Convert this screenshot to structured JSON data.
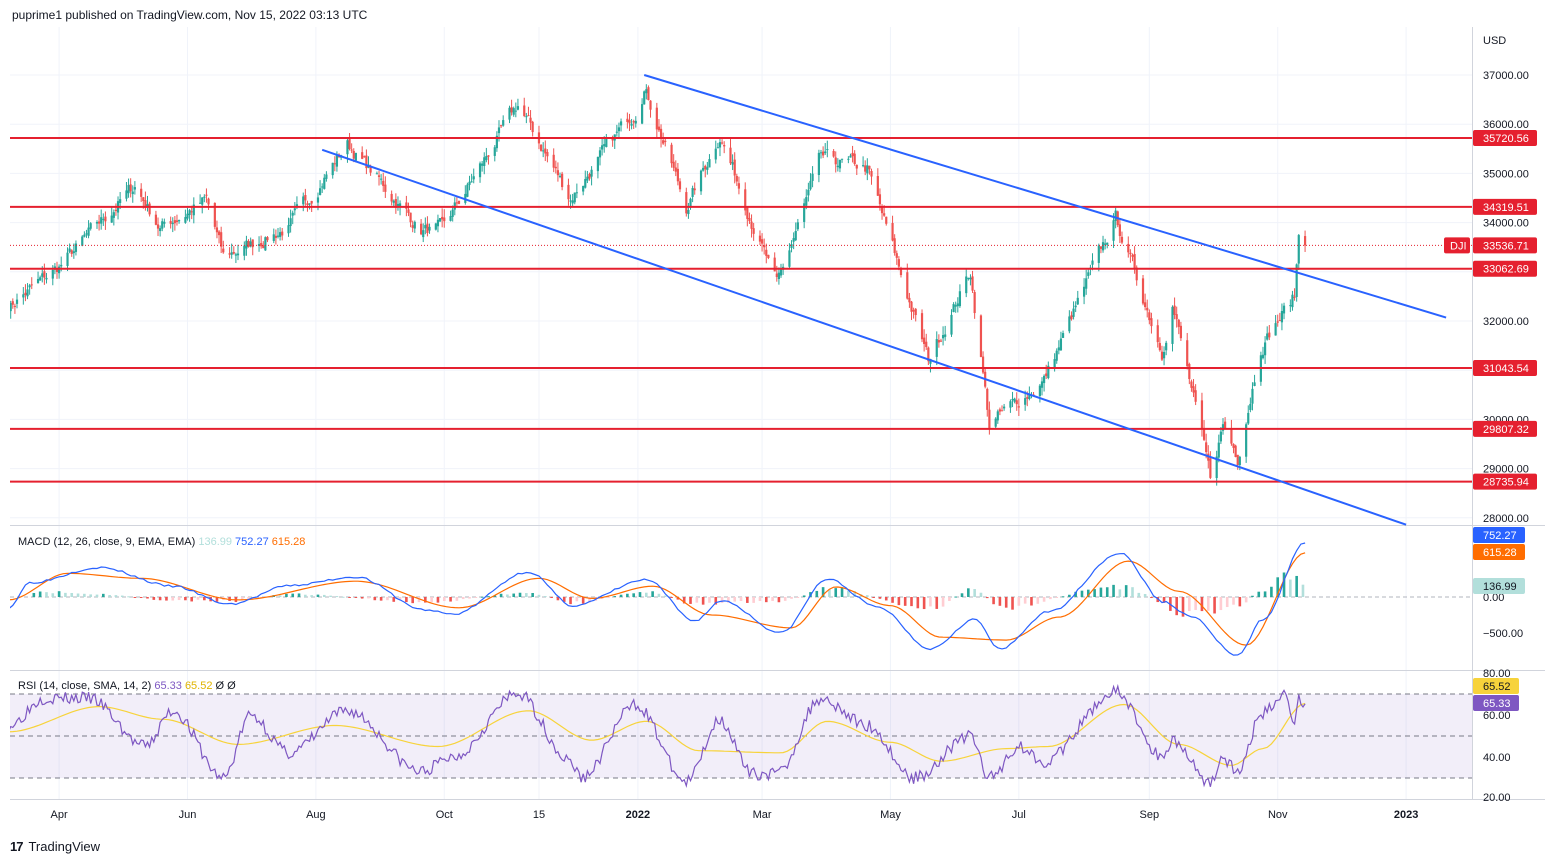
{
  "header": {
    "published": "puprime1 published on TradingView.com, Nov 15, 2022 03:13 UTC"
  },
  "footer": {
    "brand": "TradingView",
    "logo": "tv-logo-icon"
  },
  "colors": {
    "up": "#26a69a",
    "down": "#ef5350",
    "hline": "#e5202f",
    "channel": "#2962ff",
    "macd": "#2962ff",
    "signal": "#ff6d00",
    "rsi": "#7e57c2",
    "rsi_ma": "#f7d33b"
  },
  "chart_data": [
    {
      "type": "candlestick",
      "symbol": "DJI",
      "currency": "USD",
      "x_labels": [
        "Apr",
        "Jun",
        "Aug",
        "Oct",
        "15",
        "2022",
        "Mar",
        "May",
        "Jul",
        "Sep",
        "Nov",
        "2023"
      ],
      "y_ticks": [
        "37000.00",
        "36000.00",
        "35000.00",
        "34000.00",
        "33000.00",
        "32000.00",
        "31000.00",
        "30000.00",
        "29000.00",
        "28000.00"
      ],
      "ylim": [
        27800,
        38100
      ],
      "last_price": {
        "label": "DJI",
        "value": "33536.71"
      },
      "horizontal_levels": [
        {
          "value": 35720.56,
          "label": "35720.56"
        },
        {
          "value": 34319.51,
          "label": "34319.51"
        },
        {
          "value": 33062.69,
          "label": "33062.69"
        },
        {
          "value": 31043.54,
          "label": "31043.54"
        },
        {
          "value": 29807.32,
          "label": "29807.32"
        },
        {
          "value": 28735.94,
          "label": "28735.94"
        }
      ],
      "trend_channel": {
        "upper": {
          "from": {
            "x": "2022-01-04",
            "y": 37000
          },
          "to": {
            "x": "2023-01-20",
            "y": 32070
          }
        },
        "lower": {
          "from": {
            "x": "2021-08-04",
            "y": 35480
          },
          "to": {
            "x": "2023-01-01",
            "y": 27860
          }
        }
      },
      "series": [
        {
          "x": "2021-03-08",
          "y": 32300
        },
        {
          "x": "2021-04-01",
          "y": 33100
        },
        {
          "x": "2021-05-07",
          "y": 34750
        },
        {
          "x": "2021-05-19",
          "y": 33900
        },
        {
          "x": "2021-06-10",
          "y": 34450
        },
        {
          "x": "2021-06-18",
          "y": 33300
        },
        {
          "x": "2021-07-19",
          "y": 33900
        },
        {
          "x": "2021-08-16",
          "y": 35600
        },
        {
          "x": "2021-09-20",
          "y": 33850
        },
        {
          "x": "2021-09-30",
          "y": 33850
        },
        {
          "x": "2021-11-05",
          "y": 36400
        },
        {
          "x": "2021-11-30",
          "y": 34500
        },
        {
          "x": "2021-12-31",
          "y": 36300
        },
        {
          "x": "2022-01-04",
          "y": 36800
        },
        {
          "x": "2022-01-24",
          "y": 34300
        },
        {
          "x": "2022-02-09",
          "y": 35800
        },
        {
          "x": "2022-03-08",
          "y": 32700
        },
        {
          "x": "2022-03-29",
          "y": 35300
        },
        {
          "x": "2022-04-20",
          "y": 35100
        },
        {
          "x": "2022-05-19",
          "y": 31200
        },
        {
          "x": "2022-06-08",
          "y": 33000
        },
        {
          "x": "2022-06-17",
          "y": 29900
        },
        {
          "x": "2022-07-13",
          "y": 30800
        },
        {
          "x": "2022-08-16",
          "y": 34100
        },
        {
          "x": "2022-09-07",
          "y": 31400
        },
        {
          "x": "2022-09-12",
          "y": 32400
        },
        {
          "x": "2022-09-30",
          "y": 28800
        },
        {
          "x": "2022-10-06",
          "y": 29900
        },
        {
          "x": "2022-10-13",
          "y": 29250
        },
        {
          "x": "2022-10-24",
          "y": 31500
        },
        {
          "x": "2022-11-09",
          "y": 32500
        },
        {
          "x": "2022-11-11",
          "y": 33750
        },
        {
          "x": "2022-11-14",
          "y": 33536.71
        }
      ]
    },
    {
      "type": "line",
      "name": "MACD",
      "params": "(12, 26, close, 9, EMA, EMA)",
      "values_shown": {
        "histogram": "136.99",
        "macd": "752.27",
        "signal": "615.28"
      },
      "y_ticks": [
        "0.00",
        "−500.00"
      ],
      "ylim": [
        -950,
        950
      ],
      "series": [
        {
          "name": "MACD",
          "points": [
            {
              "x": "2021-03-08",
              "y": -150
            },
            {
              "x": "2021-03-18",
              "y": 200
            },
            {
              "x": "2021-04-20",
              "y": 410
            },
            {
              "x": "2021-05-25",
              "y": 150
            },
            {
              "x": "2021-06-21",
              "y": -100
            },
            {
              "x": "2021-07-20",
              "y": 160
            },
            {
              "x": "2021-08-20",
              "y": 280
            },
            {
              "x": "2021-09-22",
              "y": -180
            },
            {
              "x": "2021-10-05",
              "y": -240
            },
            {
              "x": "2021-11-10",
              "y": 350
            },
            {
              "x": "2021-12-01",
              "y": -120
            },
            {
              "x": "2022-01-05",
              "y": 240
            },
            {
              "x": "2022-01-28",
              "y": -330
            },
            {
              "x": "2022-02-10",
              "y": -50
            },
            {
              "x": "2022-03-10",
              "y": -500
            },
            {
              "x": "2022-04-01",
              "y": 250
            },
            {
              "x": "2022-04-25",
              "y": -140
            },
            {
              "x": "2022-05-20",
              "y": -720
            },
            {
              "x": "2022-06-10",
              "y": -310
            },
            {
              "x": "2022-06-22",
              "y": -730
            },
            {
              "x": "2022-07-15",
              "y": -210
            },
            {
              "x": "2022-08-18",
              "y": 610
            },
            {
              "x": "2022-09-08",
              "y": -70
            },
            {
              "x": "2022-09-20",
              "y": -260
            },
            {
              "x": "2022-10-13",
              "y": -820
            },
            {
              "x": "2022-10-25",
              "y": -310
            },
            {
              "x": "2022-11-14",
              "y": 752.27
            }
          ]
        },
        {
          "name": "Signal",
          "points": [
            {
              "x": "2021-03-08",
              "y": -40
            },
            {
              "x": "2021-04-05",
              "y": 330
            },
            {
              "x": "2021-05-10",
              "y": 260
            },
            {
              "x": "2021-06-25",
              "y": -40
            },
            {
              "x": "2021-08-20",
              "y": 220
            },
            {
              "x": "2021-10-08",
              "y": -150
            },
            {
              "x": "2021-11-15",
              "y": 260
            },
            {
              "x": "2021-12-10",
              "y": -20
            },
            {
              "x": "2022-01-08",
              "y": 150
            },
            {
              "x": "2022-02-05",
              "y": -250
            },
            {
              "x": "2022-03-15",
              "y": -430
            },
            {
              "x": "2022-04-05",
              "y": 140
            },
            {
              "x": "2022-05-01",
              "y": -120
            },
            {
              "x": "2022-05-25",
              "y": -560
            },
            {
              "x": "2022-06-25",
              "y": -600
            },
            {
              "x": "2022-07-20",
              "y": -280
            },
            {
              "x": "2022-08-22",
              "y": 500
            },
            {
              "x": "2022-09-15",
              "y": 80
            },
            {
              "x": "2022-10-17",
              "y": -670
            },
            {
              "x": "2022-11-14",
              "y": 615.28
            }
          ]
        },
        {
          "name": "Histogram",
          "points": [
            {
              "x": "2021-03-20",
              "y": 80
            },
            {
              "x": "2021-04-20",
              "y": 40
            },
            {
              "x": "2021-05-25",
              "y": -50
            },
            {
              "x": "2021-06-21",
              "y": -60
            },
            {
              "x": "2021-07-20",
              "y": 40
            },
            {
              "x": "2021-09-22",
              "y": -70
            },
            {
              "x": "2021-11-10",
              "y": 60
            },
            {
              "x": "2021-12-01",
              "y": -80
            },
            {
              "x": "2022-01-05",
              "y": 70
            },
            {
              "x": "2022-01-28",
              "y": -90
            },
            {
              "x": "2022-03-10",
              "y": -60
            },
            {
              "x": "2022-04-01",
              "y": 120
            },
            {
              "x": "2022-05-20",
              "y": -170
            },
            {
              "x": "2022-06-10",
              "y": 120
            },
            {
              "x": "2022-06-22",
              "y": -150
            },
            {
              "x": "2022-08-18",
              "y": 150
            },
            {
              "x": "2022-09-20",
              "y": -230
            },
            {
              "x": "2022-10-13",
              "y": -130
            },
            {
              "x": "2022-10-25",
              "y": 100
            },
            {
              "x": "2022-11-08",
              "y": 330
            },
            {
              "x": "2022-11-14",
              "y": 136.99
            }
          ]
        }
      ]
    },
    {
      "type": "line",
      "name": "RSI",
      "params": "(14, close, SMA, 14, 2)",
      "values_shown": {
        "rsi": "65.33",
        "ma": "65.52",
        "extra_1": "Ø",
        "extra_2": "Ø"
      },
      "y_ticks": [
        "80.00",
        "60.00",
        "40.00",
        "20.00"
      ],
      "ylim": [
        20,
        80
      ],
      "bands": {
        "upper": 70,
        "middle": 50,
        "lower": 30
      },
      "series": [
        {
          "name": "RSI",
          "points": [
            {
              "x": "2021-03-08",
              "y": 55
            },
            {
              "x": "2021-03-25",
              "y": 68
            },
            {
              "x": "2021-04-15",
              "y": 68
            },
            {
              "x": "2021-05-12",
              "y": 45
            },
            {
              "x": "2021-05-25",
              "y": 62
            },
            {
              "x": "2021-06-18",
              "y": 30
            },
            {
              "x": "2021-07-01",
              "y": 60
            },
            {
              "x": "2021-07-19",
              "y": 42
            },
            {
              "x": "2021-08-16",
              "y": 62
            },
            {
              "x": "2021-09-20",
              "y": 33
            },
            {
              "x": "2021-10-05",
              "y": 40
            },
            {
              "x": "2021-11-05",
              "y": 70
            },
            {
              "x": "2021-11-30",
              "y": 38
            },
            {
              "x": "2021-12-05",
              "y": 30
            },
            {
              "x": "2021-12-31",
              "y": 65
            },
            {
              "x": "2022-01-24",
              "y": 28
            },
            {
              "x": "2022-02-09",
              "y": 58
            },
            {
              "x": "2022-02-24",
              "y": 32
            },
            {
              "x": "2022-03-08",
              "y": 32
            },
            {
              "x": "2022-03-29",
              "y": 68
            },
            {
              "x": "2022-04-20",
              "y": 55
            },
            {
              "x": "2022-05-12",
              "y": 30
            },
            {
              "x": "2022-06-08",
              "y": 50
            },
            {
              "x": "2022-06-17",
              "y": 30
            },
            {
              "x": "2022-07-01",
              "y": 45
            },
            {
              "x": "2022-07-13",
              "y": 38
            },
            {
              "x": "2022-08-16",
              "y": 71
            },
            {
              "x": "2022-09-07",
              "y": 40
            },
            {
              "x": "2022-09-12",
              "y": 48
            },
            {
              "x": "2022-09-30",
              "y": 28
            },
            {
              "x": "2022-10-06",
              "y": 40
            },
            {
              "x": "2022-10-13",
              "y": 32
            },
            {
              "x": "2022-10-24",
              "y": 60
            },
            {
              "x": "2022-11-04",
              "y": 70
            },
            {
              "x": "2022-11-09",
              "y": 58
            },
            {
              "x": "2022-11-11",
              "y": 68
            },
            {
              "x": "2022-11-14",
              "y": 65.33
            }
          ]
        },
        {
          "name": "RSI MA",
          "points": [
            {
              "x": "2021-03-08",
              "y": 52
            },
            {
              "x": "2021-04-20",
              "y": 64
            },
            {
              "x": "2021-05-20",
              "y": 58
            },
            {
              "x": "2021-06-25",
              "y": 46
            },
            {
              "x": "2021-08-10",
              "y": 55
            },
            {
              "x": "2021-09-28",
              "y": 45
            },
            {
              "x": "2021-11-10",
              "y": 62
            },
            {
              "x": "2021-12-10",
              "y": 48
            },
            {
              "x": "2022-01-05",
              "y": 57
            },
            {
              "x": "2022-01-30",
              "y": 43
            },
            {
              "x": "2022-03-10",
              "y": 42
            },
            {
              "x": "2022-04-01",
              "y": 57
            },
            {
              "x": "2022-05-01",
              "y": 47
            },
            {
              "x": "2022-05-25",
              "y": 38
            },
            {
              "x": "2022-06-25",
              "y": 44
            },
            {
              "x": "2022-07-15",
              "y": 45
            },
            {
              "x": "2022-08-20",
              "y": 65
            },
            {
              "x": "2022-09-15",
              "y": 46
            },
            {
              "x": "2022-10-10",
              "y": 36
            },
            {
              "x": "2022-10-25",
              "y": 44
            },
            {
              "x": "2022-11-14",
              "y": 65.52
            }
          ]
        }
      ]
    }
  ]
}
